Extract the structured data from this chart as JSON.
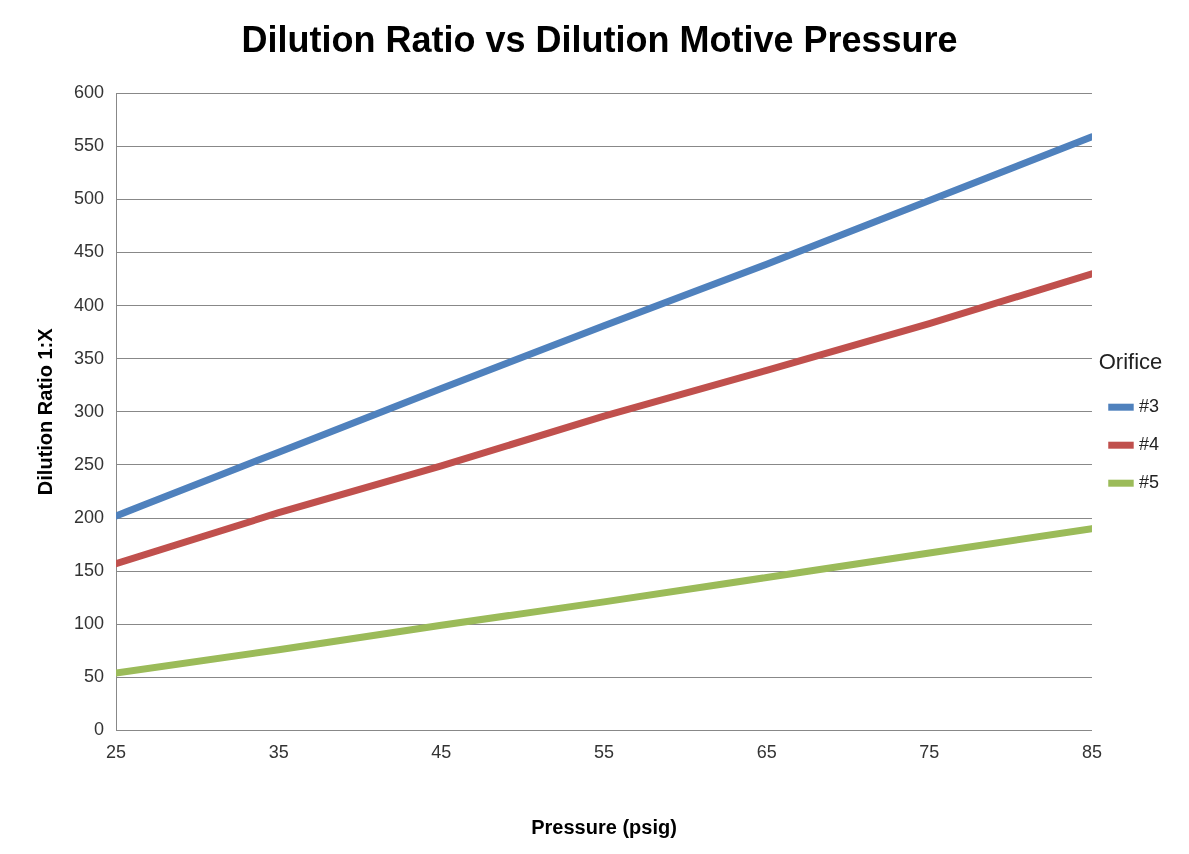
{
  "chart_data": {
    "type": "line",
    "title": "Dilution Ratio vs Dilution Motive Pressure",
    "xlabel": "Pressure (psig)",
    "ylabel": "Dilution Ratio 1:X",
    "legend_title": "Orifice",
    "x": [
      25,
      35,
      45,
      55,
      65,
      75,
      85
    ],
    "series": [
      {
        "name": "#3",
        "color": "#4f81bd",
        "values": [
          202,
          262,
          322,
          381,
          439,
          499,
          559
        ]
      },
      {
        "name": "#4",
        "color": "#c0504d",
        "values": [
          157,
          205,
          249,
          296,
          339,
          383,
          430
        ]
      },
      {
        "name": "#5",
        "color": "#9bbb59",
        "values": [
          54,
          76,
          99,
          121,
          144,
          167,
          190
        ]
      }
    ],
    "xlim": [
      25,
      85
    ],
    "xticks": [
      25,
      35,
      45,
      55,
      65,
      75,
      85
    ],
    "ylim": [
      0,
      600
    ],
    "yticks": [
      0,
      50,
      100,
      150,
      200,
      250,
      300,
      350,
      400,
      450,
      500,
      550,
      600
    ],
    "grid": "y",
    "legend": "right",
    "marker": "none",
    "line_style": "solid"
  }
}
